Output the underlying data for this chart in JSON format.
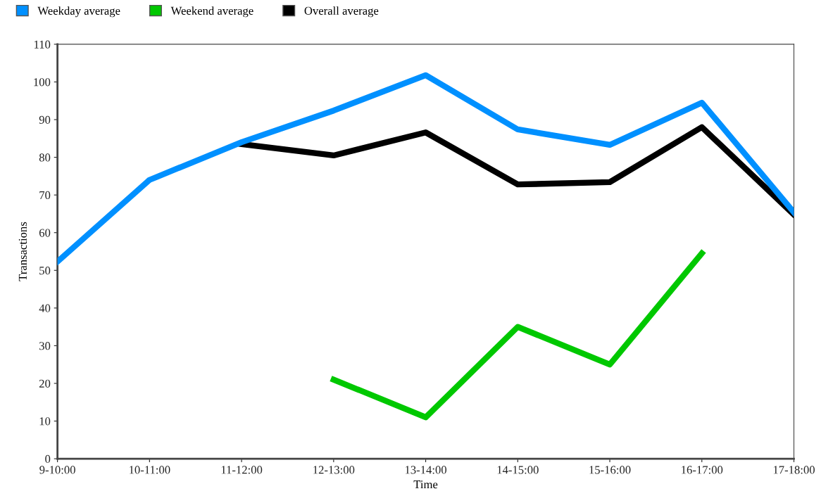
{
  "chart_data": {
    "type": "line",
    "xlabel": "Time",
    "ylabel": "Transactions",
    "categories": [
      "9-10:00",
      "10-11:00",
      "11-12:00",
      "12-13:00",
      "13-14:00",
      "14-15:00",
      "15-16:00",
      "16-17:00",
      "17-18:00"
    ],
    "series": [
      {
        "name": "Weekday average",
        "color": "#0090ff",
        "values": [
          52.3,
          74,
          84,
          92.4,
          101.8,
          87.4,
          83.3,
          94.5,
          65.4
        ]
      },
      {
        "name": "Weekend average",
        "color": "#00c800",
        "values": [
          null,
          null,
          null,
          21,
          11,
          35,
          25,
          54.5,
          null
        ]
      },
      {
        "name": "Overall average",
        "color": "#000000",
        "values": [
          null,
          null,
          83.5,
          80.5,
          86.6,
          72.8,
          73.4,
          88,
          64.8
        ]
      }
    ],
    "ylim": [
      0,
      110
    ],
    "yticks": [
      0,
      10,
      20,
      30,
      40,
      50,
      60,
      70,
      80,
      90,
      100,
      110
    ],
    "grid": false,
    "legend": "top left",
    "marker": "none",
    "line_style": "solid"
  }
}
